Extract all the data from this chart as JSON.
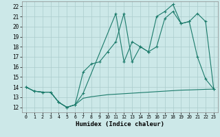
{
  "xlabel": "Humidex (Indice chaleur)",
  "background_color": "#cce8e8",
  "grid_color": "#aacccc",
  "line_color": "#1a7a6a",
  "xlim": [
    -0.5,
    23.5
  ],
  "ylim": [
    11.5,
    22.5
  ],
  "yticks": [
    12,
    13,
    14,
    15,
    16,
    17,
    18,
    19,
    20,
    21,
    22
  ],
  "xticks": [
    0,
    1,
    2,
    3,
    4,
    5,
    6,
    7,
    8,
    9,
    10,
    11,
    12,
    13,
    14,
    15,
    16,
    17,
    18,
    19,
    20,
    21,
    22,
    23
  ],
  "line1_x": [
    0,
    1,
    2,
    3,
    4,
    5,
    6,
    7,
    8,
    9,
    10,
    11,
    12,
    13,
    14,
    15,
    16,
    17,
    18,
    19,
    20,
    21,
    22,
    23
  ],
  "line1_y": [
    14.0,
    13.6,
    13.5,
    13.5,
    12.5,
    12.0,
    12.25,
    12.9,
    13.05,
    13.15,
    13.25,
    13.3,
    13.35,
    13.4,
    13.45,
    13.5,
    13.55,
    13.6,
    13.65,
    13.7,
    13.72,
    13.75,
    13.78,
    13.8
  ],
  "line2_x": [
    0,
    1,
    2,
    3,
    4,
    5,
    6,
    7,
    11,
    12,
    13,
    14,
    15,
    16,
    17,
    18,
    19,
    20,
    21,
    22,
    23
  ],
  "line2_y": [
    14.0,
    13.6,
    13.5,
    13.5,
    12.5,
    12.0,
    12.25,
    13.4,
    21.3,
    16.5,
    18.5,
    18.0,
    17.5,
    18.0,
    20.8,
    21.5,
    20.3,
    20.5,
    17.0,
    14.8,
    13.8
  ],
  "line3_x": [
    0,
    1,
    2,
    3,
    4,
    5,
    6,
    7,
    8,
    9,
    10,
    11,
    12,
    13,
    14,
    15,
    16,
    17,
    18,
    19,
    20,
    21,
    22,
    23
  ],
  "line3_y": [
    14.0,
    13.6,
    13.5,
    13.5,
    12.5,
    12.0,
    12.25,
    15.5,
    16.3,
    16.5,
    17.5,
    18.5,
    21.3,
    16.5,
    18.0,
    17.5,
    21.0,
    21.5,
    22.2,
    20.3,
    20.5,
    21.3,
    20.5,
    13.8
  ]
}
